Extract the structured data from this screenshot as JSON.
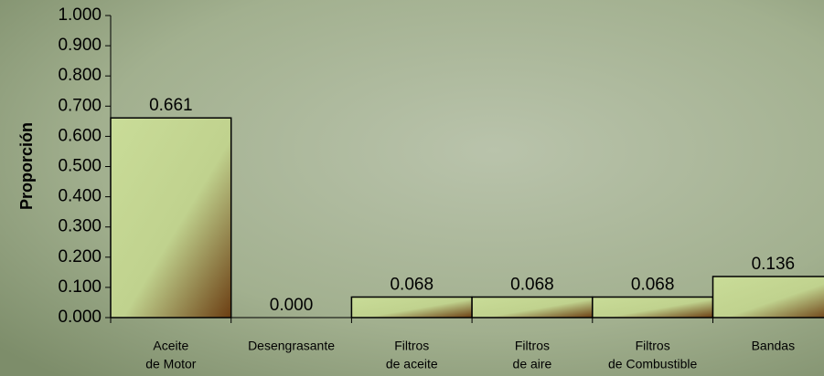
{
  "chart_data": {
    "type": "bar",
    "y_label": "Proporción",
    "categories": [
      [
        "Aceite",
        "de Motor"
      ],
      [
        "Desengrasante"
      ],
      [
        "Filtros",
        "de aceite"
      ],
      [
        "Filtros",
        "de aire"
      ],
      [
        "Filtros",
        "de Combustible"
      ],
      [
        "Bandas"
      ]
    ],
    "values": [
      0.661,
      0,
      0.068,
      0.068,
      0.068,
      0.136
    ],
    "value_labels": [
      "0.661",
      "0.000",
      "0.068",
      "0.068",
      "0.068",
      "0.136"
    ],
    "color": "#c9dc98",
    "ylim": [
      0,
      1
    ],
    "yticks": [
      {
        "value": 0,
        "label": "0.000"
      },
      {
        "value": 0.1,
        "label": "0.100"
      },
      {
        "value": 0.2,
        "label": "0.200"
      },
      {
        "value": 0.3,
        "label": "0.300"
      },
      {
        "value": 0.4,
        "label": "0.400"
      },
      {
        "value": 0.5,
        "label": "0.500"
      },
      {
        "value": 0.6,
        "label": "0.600"
      },
      {
        "value": 0.7,
        "label": "0.700"
      },
      {
        "value": 0.8,
        "label": "0.800"
      },
      {
        "value": 0.9,
        "label": "0.900"
      },
      {
        "value": 1,
        "label": "1.000"
      }
    ]
  }
}
